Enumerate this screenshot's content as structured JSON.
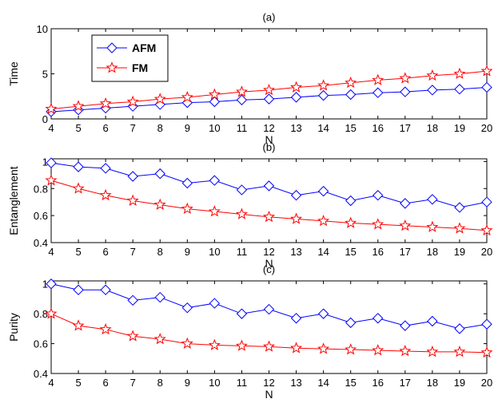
{
  "chart_data": [
    {
      "type": "line",
      "title": "(a)",
      "xlabel": "N",
      "ylabel": "Time",
      "x": [
        4,
        5,
        6,
        7,
        8,
        9,
        10,
        11,
        12,
        13,
        14,
        15,
        16,
        17,
        18,
        19,
        20
      ],
      "xlim": [
        4,
        20
      ],
      "ylim": [
        0,
        10
      ],
      "yticks": [
        0,
        5,
        10
      ],
      "xticks": [
        4,
        5,
        6,
        7,
        8,
        9,
        10,
        11,
        12,
        13,
        14,
        15,
        16,
        17,
        18,
        19,
        20
      ],
      "grid": false,
      "legend": "top-left",
      "series": [
        {
          "name": "AFM",
          "color": "#0000ff",
          "marker": "diamond",
          "values": [
            0.8,
            1.0,
            1.2,
            1.4,
            1.6,
            1.8,
            1.9,
            2.1,
            2.2,
            2.4,
            2.6,
            2.7,
            2.9,
            3.0,
            3.2,
            3.3,
            3.5
          ]
        },
        {
          "name": "FM",
          "color": "#ff0000",
          "marker": "star",
          "values": [
            1.1,
            1.4,
            1.7,
            1.9,
            2.2,
            2.4,
            2.7,
            3.0,
            3.2,
            3.5,
            3.7,
            4.0,
            4.3,
            4.5,
            4.8,
            5.0,
            5.3
          ]
        }
      ]
    },
    {
      "type": "line",
      "title": "(b)",
      "xlabel": "N",
      "ylabel": "Entanglement",
      "x": [
        4,
        5,
        6,
        7,
        8,
        9,
        10,
        11,
        12,
        13,
        14,
        15,
        16,
        17,
        18,
        19,
        20
      ],
      "xlim": [
        4,
        20
      ],
      "ylim": [
        0.4,
        1.02
      ],
      "yticks": [
        0.4,
        0.6,
        0.8,
        1
      ],
      "xticks": [
        4,
        5,
        6,
        7,
        8,
        9,
        10,
        11,
        12,
        13,
        14,
        15,
        16,
        17,
        18,
        19,
        20
      ],
      "grid": false,
      "series": [
        {
          "color": "#0000ff",
          "marker": "diamond",
          "values": [
            0.99,
            0.96,
            0.95,
            0.89,
            0.91,
            0.84,
            0.86,
            0.79,
            0.82,
            0.75,
            0.78,
            0.71,
            0.75,
            0.69,
            0.72,
            0.66,
            0.7
          ]
        },
        {
          "color": "#ff0000",
          "marker": "star",
          "values": [
            0.86,
            0.8,
            0.75,
            0.71,
            0.68,
            0.65,
            0.63,
            0.61,
            0.59,
            0.575,
            0.56,
            0.545,
            0.535,
            0.525,
            0.515,
            0.505,
            0.49
          ]
        }
      ]
    },
    {
      "type": "line",
      "title": "(c)",
      "xlabel": "N",
      "ylabel": "Purity",
      "x": [
        4,
        5,
        6,
        7,
        8,
        9,
        10,
        11,
        12,
        13,
        14,
        15,
        16,
        17,
        18,
        19,
        20
      ],
      "xlim": [
        4,
        20
      ],
      "ylim": [
        0.4,
        1.02
      ],
      "yticks": [
        0.4,
        0.6,
        0.8,
        1
      ],
      "xticks": [
        4,
        5,
        6,
        7,
        8,
        9,
        10,
        11,
        12,
        13,
        14,
        15,
        16,
        17,
        18,
        19,
        20
      ],
      "grid": false,
      "series": [
        {
          "color": "#0000ff",
          "marker": "diamond",
          "values": [
            1.0,
            0.96,
            0.96,
            0.89,
            0.91,
            0.84,
            0.87,
            0.8,
            0.83,
            0.77,
            0.8,
            0.74,
            0.77,
            0.72,
            0.75,
            0.7,
            0.73
          ]
        },
        {
          "color": "#ff0000",
          "marker": "star",
          "values": [
            0.8,
            0.72,
            0.695,
            0.65,
            0.63,
            0.6,
            0.59,
            0.585,
            0.58,
            0.57,
            0.565,
            0.56,
            0.555,
            0.55,
            0.545,
            0.545,
            0.54
          ]
        }
      ]
    }
  ]
}
